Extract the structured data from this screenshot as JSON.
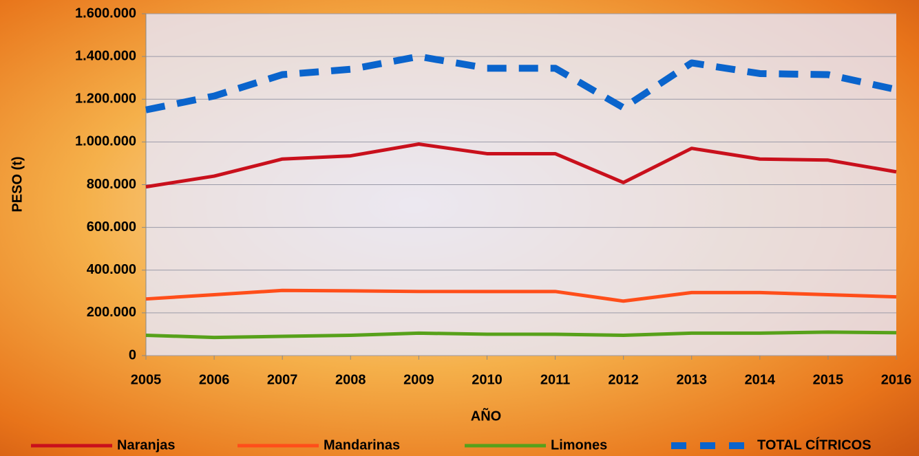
{
  "chart_data": {
    "type": "line",
    "x_label": "AÑO",
    "y_label": "PESO (t)",
    "categories": [
      "2005",
      "2006",
      "2007",
      "2008",
      "2009",
      "2010",
      "2011",
      "2012",
      "2013",
      "2014",
      "2015",
      "2016"
    ],
    "ylim": [
      0,
      1600000
    ],
    "yticks": [
      0,
      {
        "value": 200000,
        "label": "200.000"
      },
      {
        "value": 400000,
        "label": "400.000"
      },
      {
        "value": 600000,
        "label": "600.000"
      },
      {
        "value": 800000,
        "label": "800.000"
      },
      {
        "value": 1000000,
        "label": "1.000.000"
      },
      {
        "value": 1200000,
        "label": "1.200.000"
      },
      {
        "value": 1400000,
        "label": "1.400.000"
      },
      {
        "value": 1600000,
        "label": "1.600.000"
      }
    ],
    "grid": true,
    "legend": "bottom",
    "series": [
      {
        "name": "Naranjas",
        "color": "#c9101c",
        "values": [
          790000,
          840000,
          920000,
          935000,
          990000,
          945000,
          945000,
          810000,
          970000,
          920000,
          915000,
          860000
        ]
      },
      {
        "name": "Mandarinas",
        "color": "#ff4e1a",
        "values": [
          265000,
          285000,
          305000,
          303000,
          300000,
          300000,
          300000,
          255000,
          295000,
          295000,
          285000,
          275000
        ]
      },
      {
        "name": "Limones",
        "color": "#57a11a",
        "values": [
          95000,
          85000,
          90000,
          95000,
          105000,
          100000,
          100000,
          95000,
          105000,
          105000,
          110000,
          107000
        ]
      },
      {
        "name": "TOTAL CÍTRICOS",
        "color": "#0a64cc",
        "dashed": true,
        "values": [
          1150000,
          1215000,
          1315000,
          1340000,
          1400000,
          1345000,
          1345000,
          1160000,
          1370000,
          1320000,
          1315000,
          1245000
        ]
      }
    ]
  }
}
